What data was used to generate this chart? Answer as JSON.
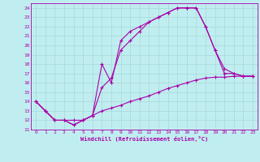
{
  "bg_color": "#c0eef0",
  "line_color": "#aa00aa",
  "grid_color": "#a8d8d8",
  "xlim": [
    -0.5,
    23.5
  ],
  "ylim": [
    11,
    24.5
  ],
  "xticks": [
    0,
    1,
    2,
    3,
    4,
    5,
    6,
    7,
    8,
    9,
    10,
    11,
    12,
    13,
    14,
    15,
    16,
    17,
    18,
    19,
    20,
    21,
    22,
    23
  ],
  "yticks": [
    11,
    12,
    13,
    14,
    15,
    16,
    17,
    18,
    19,
    20,
    21,
    22,
    23,
    24
  ],
  "xlabel": "Windchill (Refroidissement éolien,°C)",
  "curves": [
    {
      "x": [
        0,
        1,
        2,
        3,
        4,
        5,
        6,
        7,
        8,
        9,
        10,
        11,
        12,
        13,
        14,
        15,
        16,
        17,
        18,
        19,
        20,
        21,
        22,
        23
      ],
      "y": [
        14,
        13,
        12,
        12,
        12,
        12,
        12.5,
        13,
        13.3,
        13.6,
        14.0,
        14.3,
        14.6,
        15.0,
        15.4,
        15.7,
        16.0,
        16.3,
        16.5,
        16.6,
        16.6,
        16.7,
        16.7,
        16.7
      ]
    },
    {
      "x": [
        0,
        1,
        2,
        3,
        4,
        5,
        6,
        7,
        8,
        9,
        10,
        11,
        12,
        13,
        14,
        15,
        16,
        17,
        18,
        19,
        20,
        21,
        22,
        23
      ],
      "y": [
        14,
        13,
        12,
        12,
        11.5,
        12,
        12.5,
        15.5,
        16.5,
        19.5,
        20.5,
        21.5,
        22.5,
        23.0,
        23.5,
        24.0,
        24.0,
        24.0,
        22.0,
        19.5,
        17.0,
        17.0,
        16.7,
        16.7
      ]
    },
    {
      "x": [
        0,
        1,
        2,
        3,
        4,
        5,
        6,
        7,
        8,
        9,
        10,
        11,
        12,
        13,
        14,
        15,
        16,
        17,
        18,
        19,
        20,
        21,
        22,
        23
      ],
      "y": [
        14,
        13,
        12,
        12,
        11.5,
        12,
        12.5,
        18.0,
        16.0,
        20.5,
        21.5,
        22.0,
        22.5,
        23.0,
        23.5,
        24.0,
        24.0,
        24.0,
        22.0,
        19.5,
        17.5,
        17.0,
        16.7,
        16.7
      ]
    }
  ]
}
